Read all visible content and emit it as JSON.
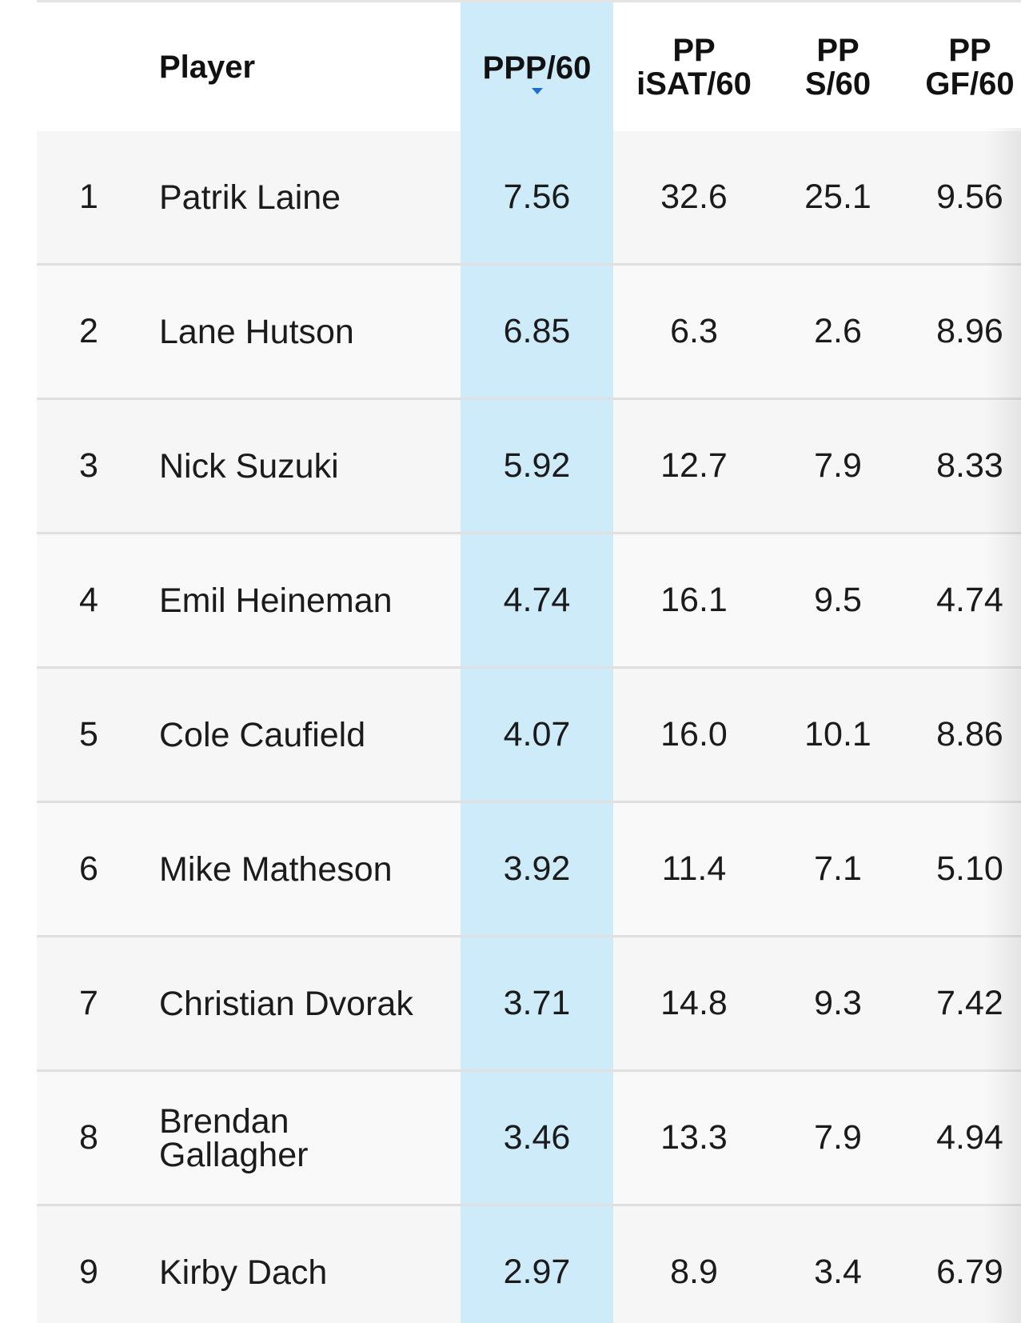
{
  "header": {
    "player": "Player",
    "ppp60": "PPP/60",
    "pp_isat60_line1": "PP",
    "pp_isat60_line2": "iSAT/60",
    "pp_s60_line1": "PP",
    "pp_s60_line2": "S/60",
    "pp_gf60_line1": "PP",
    "pp_gf60_line2": "GF/60",
    "sort_icon": "caret-down-icon",
    "sort_color": "#1a6fd6"
  },
  "colors": {
    "sorted_column": "#cdebf9",
    "row_background": "#f6f6f6",
    "row_divider": "#e0e0e0"
  },
  "rows": [
    {
      "rank": "1",
      "player": "Patrik Laine",
      "ppp60": "7.56",
      "isat60": "32.6",
      "s60": "25.1",
      "gf60": "9.56"
    },
    {
      "rank": "2",
      "player": "Lane Hutson",
      "ppp60": "6.85",
      "isat60": "6.3",
      "s60": "2.6",
      "gf60": "8.96"
    },
    {
      "rank": "3",
      "player": "Nick Suzuki",
      "ppp60": "5.92",
      "isat60": "12.7",
      "s60": "7.9",
      "gf60": "8.33"
    },
    {
      "rank": "4",
      "player": "Emil Heineman",
      "ppp60": "4.74",
      "isat60": "16.1",
      "s60": "9.5",
      "gf60": "4.74"
    },
    {
      "rank": "5",
      "player": "Cole Caufield",
      "ppp60": "4.07",
      "isat60": "16.0",
      "s60": "10.1",
      "gf60": "8.86"
    },
    {
      "rank": "6",
      "player": "Mike Matheson",
      "ppp60": "3.92",
      "isat60": "11.4",
      "s60": "7.1",
      "gf60": "5.10"
    },
    {
      "rank": "7",
      "player": "Christian Dvorak",
      "ppp60": "3.71",
      "isat60": "14.8",
      "s60": "9.3",
      "gf60": "7.42"
    },
    {
      "rank": "8",
      "player": "Brendan Gallagher",
      "ppp60": "3.46",
      "isat60": "13.3",
      "s60": "7.9",
      "gf60": "4.94"
    },
    {
      "rank": "9",
      "player": "Kirby Dach",
      "ppp60": "2.97",
      "isat60": "8.9",
      "s60": "3.4",
      "gf60": "6.79"
    }
  ]
}
